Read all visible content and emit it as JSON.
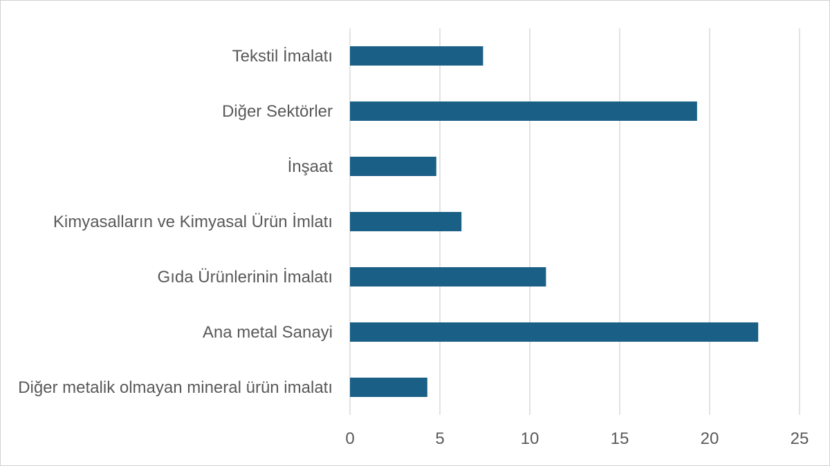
{
  "chart_data": {
    "type": "bar",
    "orientation": "horizontal",
    "title": "",
    "xlabel": "",
    "ylabel": "",
    "categories": [
      "Tekstil İmalatı",
      "Diğer Sektörler",
      "İnşaat",
      "Kimyasalların ve Kimyasal Ürün İmlatı",
      "Gıda Ürünlerinin İmalatı",
      "Ana metal Sanayi",
      "Diğer metalik olmayan mineral ürün imalatı"
    ],
    "values": [
      7.4,
      19.3,
      4.8,
      6.2,
      10.9,
      22.7,
      4.3
    ],
    "xlim": [
      0,
      25
    ],
    "xticks": [
      "0",
      "5",
      "10",
      "15",
      "20",
      "25"
    ],
    "grid": true,
    "legend": "none",
    "bar_color": "#1a5f86"
  }
}
